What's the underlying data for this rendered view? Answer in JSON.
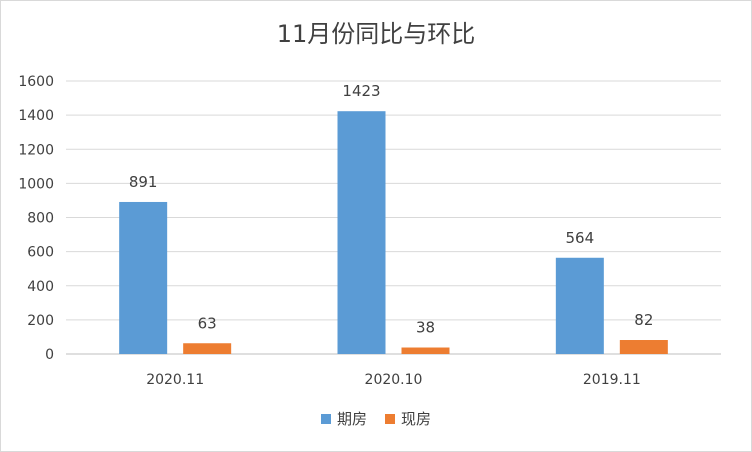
{
  "chart_data": {
    "type": "bar",
    "title": "11月份同比与环比",
    "categories": [
      "2020.11",
      "2020.10",
      "2019.11"
    ],
    "series": [
      {
        "name": "期房",
        "values": [
          891,
          1423,
          564
        ],
        "color": "#5b9bd5"
      },
      {
        "name": "现房",
        "values": [
          63,
          38,
          82
        ],
        "color": "#ed7d31"
      }
    ],
    "ylim": [
      0,
      1600
    ],
    "yticks": [
      0,
      200,
      400,
      600,
      800,
      1000,
      1200,
      1400,
      1600
    ],
    "grid": true,
    "legend": "bottom"
  }
}
